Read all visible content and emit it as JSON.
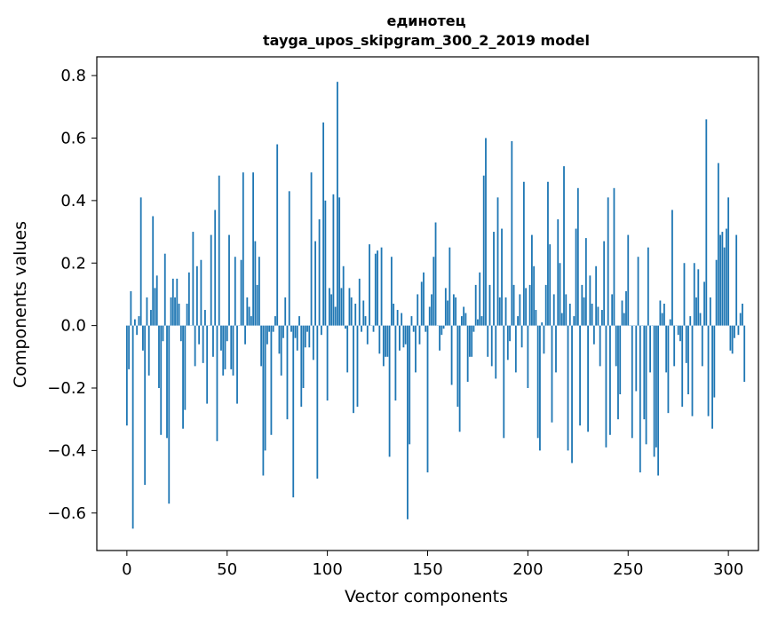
{
  "chart_data": {
    "type": "bar",
    "title": "единотец",
    "subtitle": "tayga_upos_skipgram_300_2_2019 model",
    "xlabel": "Vector components",
    "ylabel": "Components values",
    "xlim": [
      -15,
      315
    ],
    "ylim": [
      -0.72,
      0.86
    ],
    "xticks": [
      0,
      50,
      100,
      150,
      200,
      250,
      300
    ],
    "xtick_labels": [
      "0",
      "50",
      "100",
      "150",
      "200",
      "250",
      "300"
    ],
    "yticks": [
      -0.6,
      -0.4,
      -0.2,
      0.0,
      0.2,
      0.4,
      0.6,
      0.8
    ],
    "ytick_labels": [
      "−0.6",
      "−0.4",
      "−0.2",
      "0.0",
      "0.2",
      "0.4",
      "0.6",
      "0.8"
    ],
    "grid": false,
    "bar_color": "#1f77b4",
    "values": [
      -0.32,
      -0.14,
      0.11,
      -0.65,
      0.02,
      -0.03,
      0.03,
      0.41,
      -0.08,
      -0.51,
      0.09,
      -0.16,
      0.05,
      0.35,
      0.12,
      0.16,
      -0.2,
      -0.35,
      -0.05,
      0.23,
      -0.36,
      -0.57,
      0.09,
      0.15,
      0.09,
      0.15,
      0.07,
      -0.05,
      -0.33,
      -0.27,
      0.07,
      0.17,
      0.0,
      0.3,
      -0.13,
      0.19,
      -0.06,
      0.21,
      -0.12,
      0.05,
      -0.25,
      0.0,
      0.29,
      -0.1,
      0.37,
      -0.37,
      0.48,
      -0.08,
      -0.16,
      -0.14,
      -0.05,
      0.29,
      -0.14,
      -0.16,
      0.22,
      -0.25,
      0.0,
      0.21,
      0.49,
      -0.06,
      0.09,
      0.06,
      0.03,
      0.49,
      0.27,
      0.13,
      0.22,
      -0.13,
      -0.48,
      -0.4,
      -0.06,
      -0.02,
      -0.35,
      -0.02,
      0.03,
      0.58,
      -0.09,
      -0.16,
      -0.04,
      0.09,
      -0.3,
      0.43,
      -0.02,
      -0.55,
      -0.04,
      -0.08,
      0.03,
      -0.26,
      -0.2,
      -0.07,
      -0.02,
      -0.07,
      0.49,
      -0.11,
      0.27,
      -0.49,
      0.34,
      -0.03,
      0.65,
      0.4,
      -0.24,
      0.12,
      0.1,
      0.42,
      0.06,
      0.78,
      0.41,
      0.12,
      0.19,
      -0.01,
      -0.15,
      0.12,
      0.09,
      -0.28,
      0.07,
      -0.26,
      0.15,
      -0.02,
      0.08,
      0.03,
      -0.06,
      0.26,
      0.0,
      -0.02,
      0.23,
      0.24,
      -0.09,
      0.25,
      -0.13,
      -0.1,
      -0.1,
      -0.42,
      0.22,
      0.07,
      -0.24,
      0.05,
      -0.08,
      0.04,
      -0.07,
      -0.06,
      -0.62,
      -0.38,
      0.03,
      -0.02,
      -0.15,
      0.1,
      -0.06,
      0.14,
      0.17,
      -0.02,
      -0.47,
      0.06,
      0.1,
      0.22,
      0.33,
      0.0,
      -0.08,
      -0.03,
      -0.01,
      0.12,
      0.08,
      0.25,
      -0.19,
      0.1,
      0.09,
      -0.26,
      -0.34,
      0.03,
      0.06,
      0.04,
      -0.18,
      -0.1,
      -0.1,
      -0.02,
      0.13,
      0.02,
      0.17,
      0.03,
      0.48,
      0.6,
      -0.1,
      0.13,
      -0.13,
      0.3,
      -0.17,
      0.41,
      0.09,
      0.31,
      -0.36,
      0.09,
      -0.11,
      -0.05,
      0.59,
      0.13,
      -0.15,
      0.03,
      0.1,
      -0.07,
      0.46,
      0.12,
      -0.2,
      0.13,
      0.29,
      0.19,
      0.05,
      -0.36,
      -0.4,
      0.01,
      -0.09,
      0.13,
      0.46,
      0.26,
      -0.31,
      0.1,
      -0.15,
      0.34,
      0.2,
      0.04,
      0.51,
      0.1,
      -0.4,
      0.07,
      -0.44,
      0.03,
      0.31,
      0.44,
      -0.32,
      0.13,
      0.09,
      0.28,
      -0.34,
      0.16,
      0.07,
      -0.06,
      0.19,
      0.06,
      -0.13,
      0.05,
      0.27,
      -0.39,
      0.41,
      -0.35,
      0.1,
      0.44,
      -0.13,
      -0.3,
      -0.22,
      0.08,
      0.04,
      0.11,
      0.29,
      0.0,
      -0.36,
      0.0,
      -0.21,
      0.22,
      -0.47,
      0.0,
      -0.3,
      -0.38,
      0.25,
      -0.15,
      0.0,
      -0.42,
      -0.39,
      -0.48,
      0.08,
      0.04,
      0.07,
      -0.15,
      -0.28,
      0.02,
      0.37,
      -0.13,
      0.0,
      -0.03,
      -0.05,
      -0.26,
      0.2,
      -0.12,
      -0.22,
      0.03,
      -0.29,
      0.2,
      0.09,
      0.18,
      0.04,
      -0.13,
      0.14,
      0.66,
      -0.29,
      0.09,
      -0.33,
      -0.23,
      0.21,
      0.52,
      0.29,
      0.3,
      0.25,
      0.31,
      0.41,
      -0.08,
      -0.09,
      -0.04,
      0.29,
      -0.03,
      0.04,
      0.07,
      -0.18
    ]
  }
}
